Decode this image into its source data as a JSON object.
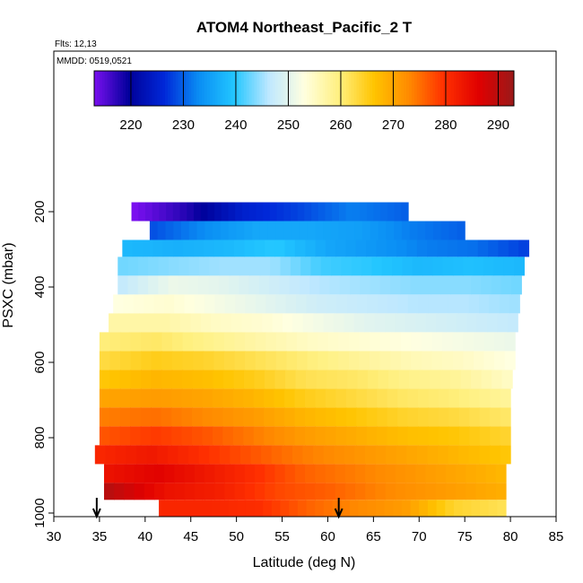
{
  "chart_data": {
    "type": "heatmap",
    "title": "ATOM4 Northeast_Pacific_2 T",
    "subtitle_flights": "Flts: 12,13",
    "subtitle_dates": "MMDD: 0519,0521",
    "xlabel": "Latitude (deg N)",
    "ylabel": "PSXC (mbar)",
    "xlim": [
      30,
      85
    ],
    "ylim": [
      1000,
      100
    ],
    "x_ticks": [
      "30",
      "35",
      "40",
      "45",
      "50",
      "55",
      "60",
      "65",
      "70",
      "75",
      "80",
      "85"
    ],
    "y_ticks": [
      "200",
      "400",
      "600",
      "800",
      "1000"
    ],
    "colorbar": {
      "min": 213,
      "max": 293,
      "ticks": [
        "220",
        "230",
        "240",
        "250",
        "260",
        "270",
        "280",
        "290"
      ],
      "colors": [
        "#7a10ef",
        "#00009a",
        "#0028d8",
        "#0a8ef4",
        "#22c6ff",
        "#bfe8ff",
        "#ffffe0",
        "#fff080",
        "#ffc400",
        "#ff8a00",
        "#ff3000",
        "#e00000",
        "#9a1a1a"
      ]
    },
    "arrows_at_latitude": [
      34.7,
      61.2
    ],
    "layers": [
      {
        "p_top": 175,
        "p_bot": 225,
        "lat_start": 38.5,
        "lat_end": 68.8,
        "values": [
          213,
          218,
          225,
          228,
          232,
          230
        ]
      },
      {
        "p_top": 225,
        "p_bot": 275,
        "lat_start": 40.5,
        "lat_end": 75.0,
        "values": [
          229,
          233,
          236,
          236,
          235,
          232,
          230
        ]
      },
      {
        "p_top": 275,
        "p_bot": 320,
        "lat_start": 37.5,
        "lat_end": 82.0,
        "values": [
          238,
          237,
          238,
          240,
          236,
          234,
          232,
          231,
          228
        ]
      },
      {
        "p_top": 320,
        "p_bot": 370,
        "lat_start": 37.0,
        "lat_end": 81.5,
        "values": [
          243,
          244,
          245,
          245,
          241,
          240,
          238,
          239,
          238
        ]
      },
      {
        "p_top": 370,
        "p_bot": 420,
        "lat_start": 37.0,
        "lat_end": 81.2,
        "values": [
          247,
          251,
          250,
          248,
          246,
          245,
          244,
          244,
          243
        ]
      },
      {
        "p_top": 420,
        "p_bot": 470,
        "lat_start": 36.5,
        "lat_end": 81.0,
        "values": [
          253,
          254,
          252,
          250,
          248,
          247,
          246,
          246,
          245
        ]
      },
      {
        "p_top": 470,
        "p_bot": 520,
        "lat_start": 36.0,
        "lat_end": 80.8,
        "values": [
          257,
          257,
          255,
          254,
          252,
          250,
          249,
          248,
          247
        ]
      },
      {
        "p_top": 520,
        "p_bot": 570,
        "lat_start": 35.0,
        "lat_end": 80.5,
        "values": [
          260,
          261,
          259,
          257,
          255,
          254,
          253,
          252,
          251
        ]
      },
      {
        "p_top": 570,
        "p_bot": 620,
        "lat_start": 35.0,
        "lat_end": 80.5,
        "values": [
          263,
          265,
          264,
          262,
          260,
          258,
          256,
          255,
          253
        ]
      },
      {
        "p_top": 620,
        "p_bot": 670,
        "lat_start": 35.0,
        "lat_end": 80.2,
        "values": [
          266,
          268,
          267,
          265,
          262,
          261,
          259,
          258,
          255
        ]
      },
      {
        "p_top": 670,
        "p_bot": 720,
        "lat_start": 35.0,
        "lat_end": 80.0,
        "values": [
          270,
          271,
          270,
          268,
          265,
          263,
          261,
          260,
          258
        ]
      },
      {
        "p_top": 720,
        "p_bot": 770,
        "lat_start": 35.0,
        "lat_end": 80.0,
        "values": [
          274,
          275,
          273,
          271,
          268,
          266,
          264,
          263,
          261
        ]
      },
      {
        "p_top": 770,
        "p_bot": 820,
        "lat_start": 35.0,
        "lat_end": 80.0,
        "values": [
          277,
          279,
          277,
          274,
          271,
          269,
          267,
          266,
          264
        ]
      },
      {
        "p_top": 820,
        "p_bot": 870,
        "lat_start": 34.5,
        "lat_end": 80.0,
        "values": [
          281,
          283,
          280,
          277,
          274,
          272,
          270,
          268,
          266
        ]
      },
      {
        "p_top": 870,
        "p_bot": 920,
        "lat_start": 35.5,
        "lat_end": 79.5,
        "values": [
          284,
          286,
          283,
          280,
          276,
          274,
          272,
          270,
          268
        ]
      },
      {
        "p_top": 920,
        "p_bot": 965,
        "lat_start": 35.5,
        "lat_end": 79.5,
        "values": [
          290,
          284,
          282,
          278,
          276,
          273,
          271,
          269
        ]
      },
      {
        "p_top": 965,
        "p_bot": 1010,
        "lat_start": 41.5,
        "lat_end": 79.5,
        "values": [
          281,
          281,
          280,
          276,
          273,
          271,
          264,
          262
        ]
      }
    ]
  }
}
